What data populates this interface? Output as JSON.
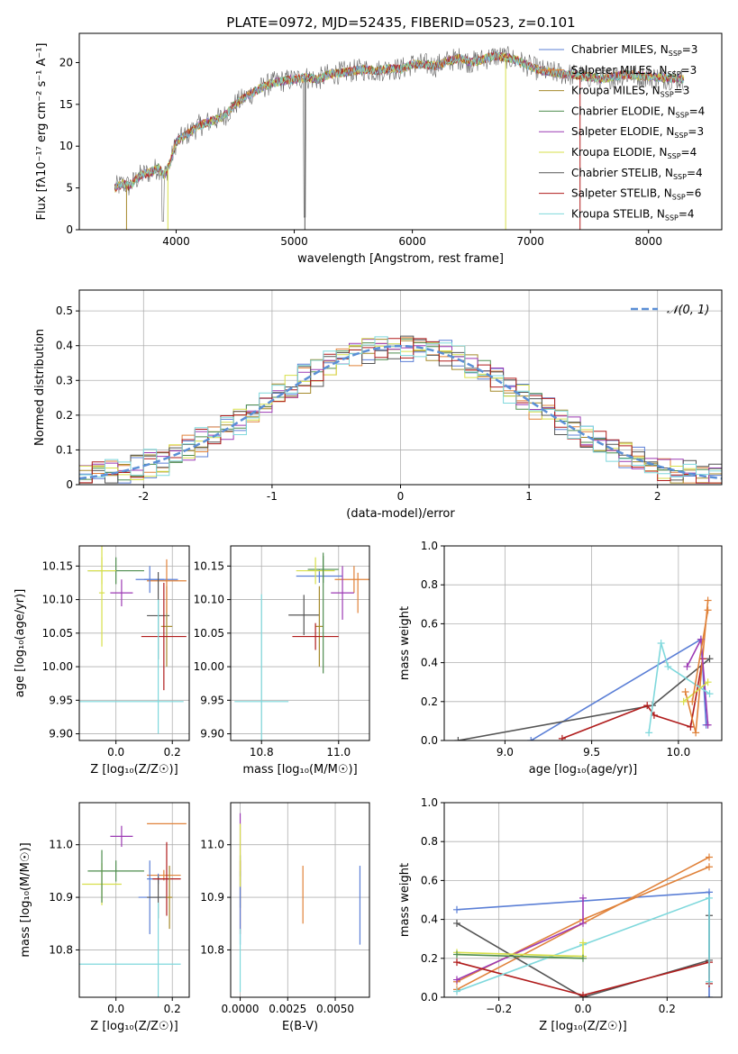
{
  "figure": {
    "title": "PLATE=0972, MJD=52435, FIBERID=0523, z=0.101"
  },
  "chart_data": [
    {
      "id": "spectrum",
      "type": "line",
      "title": "PLATE=0972, MJD=52435, FIBERID=0523, z=0.101",
      "xlabel": "wavelength [Angstrom, rest frame]",
      "ylabel": "Flux [fλ10⁻¹⁷ erg cm⁻² s⁻¹ A⁻¹]",
      "xlim": [
        3180,
        8620
      ],
      "ylim": [
        0,
        23.5
      ],
      "xticks": [
        4000,
        5000,
        6000,
        7000,
        8000
      ],
      "yticks": [
        0,
        5,
        10,
        15,
        20
      ],
      "grid": false,
      "legend_position": "top-right",
      "spectrum_x": [
        3480,
        3550,
        3600,
        3700,
        3800,
        3850,
        3900,
        3950,
        4000,
        4050,
        4100,
        4200,
        4300,
        4400,
        4500,
        4600,
        4700,
        4800,
        4900,
        5000,
        5100,
        5200,
        5300,
        5400,
        5500,
        5600,
        5700,
        5800,
        5900,
        6000,
        6100,
        6200,
        6300,
        6400,
        6500,
        6600,
        6700,
        6800,
        6900,
        7000,
        7100,
        7200,
        7300,
        7400,
        7500,
        7600,
        7800,
        8000,
        8200,
        8300
      ],
      "spectrum_y": [
        5.0,
        5.5,
        5.2,
        6.5,
        7.0,
        7.5,
        6.5,
        8.0,
        10.5,
        11.0,
        11.5,
        12.5,
        13.0,
        13.5,
        15.0,
        16.0,
        16.8,
        17.5,
        17.8,
        18.0,
        18.2,
        18.0,
        18.6,
        18.8,
        19.0,
        19.2,
        19.0,
        19.3,
        19.2,
        19.8,
        19.8,
        19.6,
        20.2,
        20.5,
        20.0,
        20.4,
        20.8,
        20.6,
        20.2,
        19.5,
        19.0,
        18.8,
        18.6,
        18.5,
        18.3,
        18.0,
        18.6,
        18.3,
        18.1,
        18.0
      ],
      "series": [
        {
          "name": "Chabrier MILES, N",
          "sub": "SSP",
          "suffix": "=3",
          "color": "#5b7fd6"
        },
        {
          "name": "Salpeter MILES, N",
          "sub": "SSP",
          "suffix": "=3",
          "color": "#e0823a"
        },
        {
          "name": "Kroupa MILES, N",
          "sub": "SSP",
          "suffix": "=3",
          "color": "#a58a2c"
        },
        {
          "name": "Chabrier ELODIE, N",
          "sub": "SSP",
          "suffix": "=4",
          "color": "#4e8d4e"
        },
        {
          "name": "Salpeter ELODIE, N",
          "sub": "SSP",
          "suffix": "=3",
          "color": "#9c3ab4"
        },
        {
          "name": "Kroupa ELODIE, N",
          "sub": "SSP",
          "suffix": "=4",
          "color": "#d7df4a"
        },
        {
          "name": "Chabrier STELIB, N",
          "sub": "SSP",
          "suffix": "=4",
          "color": "#555555"
        },
        {
          "name": "Salpeter STELIB, N",
          "sub": "SSP",
          "suffix": "=6",
          "color": "#b01c1c"
        },
        {
          "name": "Kroupa STELIB, N",
          "sub": "SSP",
          "suffix": "=4",
          "color": "#7fd8dc"
        }
      ]
    },
    {
      "id": "residuals",
      "type": "histogram",
      "xlabel": "(data-model)/error",
      "ylabel": "Normed distribution",
      "xlim": [
        -2.5,
        2.5
      ],
      "ylim": [
        0,
        0.56
      ],
      "xticks": [
        -2,
        -1,
        0,
        1,
        2
      ],
      "yticks": [
        0.0,
        0.1,
        0.2,
        0.3,
        0.4,
        0.5
      ],
      "grid": true,
      "legend_position": "top-right",
      "legend": "𝒩(0, 1)",
      "gaussian_color": "#5b8fd6",
      "bin_width": 0.1,
      "bin_start": -2.5
    },
    {
      "id": "age-vs-Z",
      "type": "errorbar",
      "xlabel": "Z [log₁₀(Z/Z☉)]",
      "ylabel": "age  [log₁₀(age/yr)]",
      "xlim": [
        -0.13,
        0.26
      ],
      "ylim": [
        9.89,
        10.18
      ],
      "xticks": [
        "0.0",
        "0.2"
      ],
      "yticks": [
        "9.90",
        "9.95",
        "10.00",
        "10.05",
        "10.10",
        "10.15"
      ],
      "grid": true
    },
    {
      "id": "age-vs-mass",
      "type": "errorbar",
      "xlabel": "mass [log₁₀(M/M☉)]",
      "xlim": [
        10.72,
        11.08
      ],
      "ylim": [
        9.89,
        10.18
      ],
      "xticks": [
        "10.8",
        "11.0"
      ],
      "yticks": [
        "9.90",
        "9.95",
        "10.00",
        "10.05",
        "10.10",
        "10.15"
      ],
      "grid": true
    },
    {
      "id": "weight-vs-age",
      "type": "line",
      "xlabel": "age  [log₁₀(age/yr)]",
      "ylabel": "mass weight",
      "xlim": [
        8.65,
        10.25
      ],
      "ylim": [
        0,
        1.0
      ],
      "xticks": [
        "9.0",
        "9.5",
        "10.0"
      ],
      "yticks": [
        "0.0",
        "0.2",
        "0.4",
        "0.6",
        "0.8",
        "1.0"
      ],
      "grid": true
    },
    {
      "id": "mass-vs-Z",
      "type": "errorbar",
      "xlabel": "Z [log₁₀(Z/Z☉)]",
      "ylabel": "mass [log₁₀(M/M☉)]",
      "xlim": [
        -0.13,
        0.26
      ],
      "ylim": [
        10.71,
        11.08
      ],
      "xticks": [
        "0.0",
        "0.2"
      ],
      "yticks": [
        "10.8",
        "10.9",
        "11.0"
      ],
      "grid": true
    },
    {
      "id": "mass-vs-EBV",
      "type": "errorbar",
      "xlabel": "E(B-V)",
      "xlim": [
        -0.0005,
        0.0068
      ],
      "ylim": [
        10.71,
        11.08
      ],
      "xticks": [
        "0.0000",
        "0.0025",
        "0.0050"
      ],
      "yticks": [
        "10.8",
        "10.9",
        "11.0"
      ],
      "grid": true
    },
    {
      "id": "weight-vs-Z",
      "type": "line",
      "xlabel": "Z [log₁₀(Z/Z☉)]",
      "ylabel": "mass weight",
      "xlim": [
        -0.33,
        0.33
      ],
      "ylim": [
        0,
        1.0
      ],
      "xticks": [
        "−0.2",
        "0.0",
        "0.2"
      ],
      "yticks": [
        "0.0",
        "0.2",
        "0.4",
        "0.6",
        "0.8",
        "1.0"
      ],
      "grid": true
    }
  ]
}
